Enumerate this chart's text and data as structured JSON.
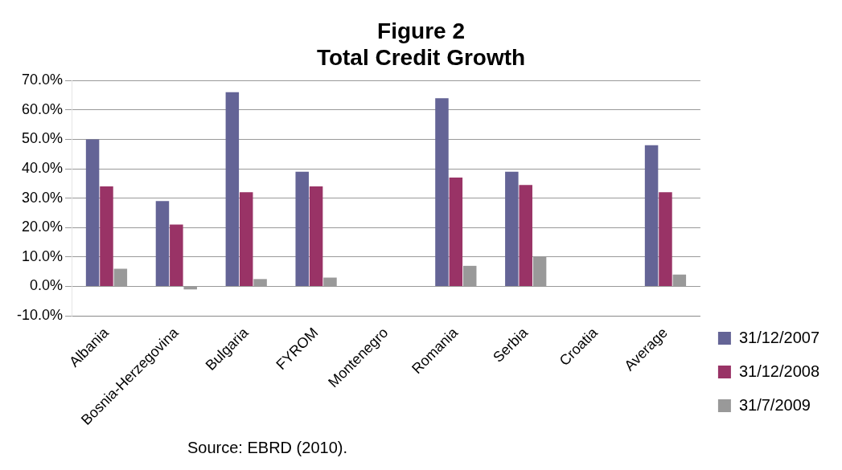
{
  "chart_data": {
    "type": "bar",
    "title": "Figure 2",
    "subtitle": "Total Credit Growth",
    "categories": [
      "Albania",
      "Bosnia-Herzegovina",
      "Bulgaria",
      "FYROM",
      "Montenegro",
      "Romania",
      "Serbia",
      "Croatia",
      "Average"
    ],
    "series": [
      {
        "name": "31/12/2007",
        "color": "#646496",
        "values": [
          50,
          29,
          66,
          39,
          0,
          64,
          39,
          0,
          48
        ]
      },
      {
        "name": "31/12/2008",
        "color": "#993366",
        "values": [
          34,
          21,
          32,
          34,
          0,
          37,
          34.5,
          0,
          32
        ]
      },
      {
        "name": "31/7/2009",
        "color": "#999999",
        "values": [
          6,
          -1,
          2.5,
          3,
          0,
          7,
          10,
          0,
          4
        ]
      }
    ],
    "ylim": [
      -10,
      70
    ],
    "yticks": [
      {
        "value": -10,
        "label": "-10.0%"
      },
      {
        "value": 0,
        "label": "0.0%"
      },
      {
        "value": 10,
        "label": "10.0%"
      },
      {
        "value": 20,
        "label": "20.0%"
      },
      {
        "value": 30,
        "label": "30.0%"
      },
      {
        "value": 40,
        "label": "40.0%"
      },
      {
        "value": 50,
        "label": "50.0%"
      },
      {
        "value": 60,
        "label": "60.0%"
      },
      {
        "value": 70,
        "label": "70.0%"
      }
    ],
    "grid": "y",
    "legend": "right",
    "annotations": [
      "Source: EBRD (2010)."
    ]
  }
}
